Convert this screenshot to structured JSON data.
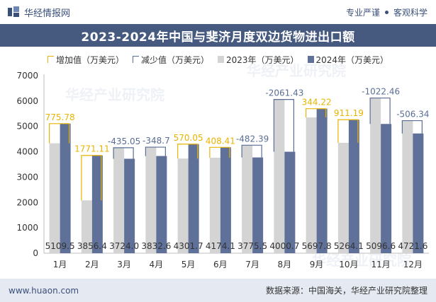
{
  "header": {
    "brand": "华经情报网",
    "tag1": "专业严谨",
    "tag2": "客观科学"
  },
  "colors": {
    "bar_2023": "#d4d4d4",
    "bar_2024": "#5f7099",
    "increase": "#e8b400",
    "decrease": "#5a6e95",
    "title_bg": "#46597f"
  },
  "watermark": "华经产业研究院",
  "chart_data": {
    "type": "bar",
    "title": "2023-2024年中国与斐济月度双边货物进出口额",
    "legend": [
      "增加值（万美元）",
      "减少值（万美元）",
      "2023年（万美元）",
      "2024年（万美元）"
    ],
    "legend_placement": "top",
    "categories": [
      "1月",
      "2月",
      "3月",
      "4月",
      "5月",
      "6月",
      "7月",
      "8月",
      "9月",
      "10月",
      "11月",
      "12月"
    ],
    "series": [
      {
        "name": "2023年（万美元）",
        "values": [
          4333.7,
          2085.3,
          4159.1,
          4181.3,
          3731.7,
          3765.7,
          4257.9,
          6062.1,
          5353.5,
          4352.9,
          6119.1,
          5228.0
        ]
      },
      {
        "name": "2024年（万美元）",
        "values": [
          5109.5,
          3856.4,
          3724.0,
          3832.6,
          4301.7,
          4174.1,
          3775.5,
          4000.7,
          5697.8,
          5264.1,
          5096.6,
          4721.6
        ]
      }
    ],
    "changes": [
      "775.78",
      "1771.11",
      "-435.05",
      "-348.7",
      "570.05",
      "408.41",
      "-482.39",
      "-2061.43",
      "344.22",
      "911.19",
      "-1022.46",
      "-506.34"
    ],
    "value_labels": [
      "5109.5",
      "3856.4",
      "3724.0",
      "3832.6",
      "4301.7",
      "4174.1",
      "3775.5",
      "4000.7",
      "5697.8",
      "5264.1",
      "5096.6",
      "4721.6"
    ],
    "ylim": [
      0,
      7000
    ],
    "yticks": [
      "0",
      "1000",
      "2000",
      "3000",
      "4000",
      "5000",
      "6000",
      "7000"
    ],
    "grid": false
  },
  "footer": {
    "website": "www.huaon.com",
    "source": "数据来源：中国海关，华经产业研究院整理"
  }
}
